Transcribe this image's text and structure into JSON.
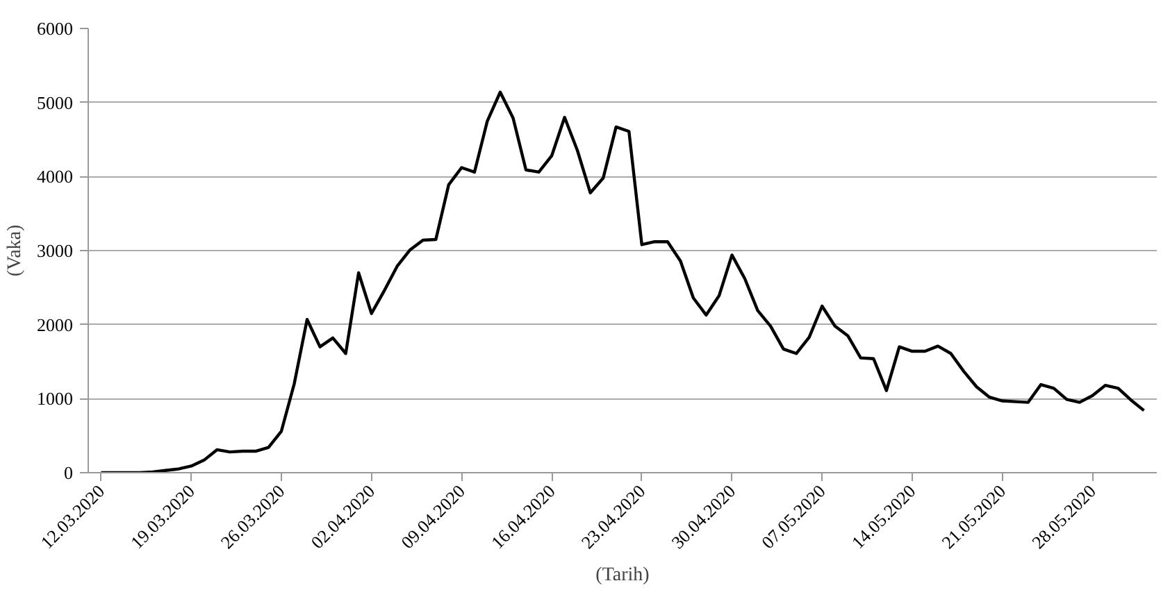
{
  "chart_data": {
    "type": "line",
    "xlabel": "(Tarih)",
    "ylabel": "(Vaka)",
    "x": [
      "2020-03-12",
      "2020-03-13",
      "2020-03-14",
      "2020-03-15",
      "2020-03-16",
      "2020-03-17",
      "2020-03-18",
      "2020-03-19",
      "2020-03-20",
      "2020-03-21",
      "2020-03-22",
      "2020-03-23",
      "2020-03-24",
      "2020-03-25",
      "2020-03-26",
      "2020-03-27",
      "2020-03-28",
      "2020-03-29",
      "2020-03-30",
      "2020-03-31",
      "2020-04-01",
      "2020-04-02",
      "2020-04-03",
      "2020-04-04",
      "2020-04-05",
      "2020-04-06",
      "2020-04-07",
      "2020-04-08",
      "2020-04-09",
      "2020-04-10",
      "2020-04-11",
      "2020-04-12",
      "2020-04-13",
      "2020-04-14",
      "2020-04-15",
      "2020-04-16",
      "2020-04-17",
      "2020-04-18",
      "2020-04-19",
      "2020-04-20",
      "2020-04-21",
      "2020-04-22",
      "2020-04-23",
      "2020-04-24",
      "2020-04-25",
      "2020-04-26",
      "2020-04-27",
      "2020-04-28",
      "2020-04-29",
      "2020-04-30",
      "2020-05-01",
      "2020-05-02",
      "2020-05-03",
      "2020-05-04",
      "2020-05-05",
      "2020-05-06",
      "2020-05-07",
      "2020-05-08",
      "2020-05-09",
      "2020-05-10",
      "2020-05-11",
      "2020-05-12",
      "2020-05-13",
      "2020-05-14",
      "2020-05-15",
      "2020-05-16",
      "2020-05-17",
      "2020-05-18",
      "2020-05-19",
      "2020-05-20",
      "2020-05-21",
      "2020-05-22",
      "2020-05-23",
      "2020-05-24",
      "2020-05-25",
      "2020-05-26",
      "2020-05-27",
      "2020-05-28",
      "2020-05-29",
      "2020-05-30",
      "2020-05-31",
      "2020-06-01"
    ],
    "series": [
      {
        "color": "#000000",
        "values": [
          0,
          0,
          0,
          0,
          10,
          30,
          50,
          90,
          170,
          310,
          280,
          290,
          290,
          340,
          560,
          1200,
          2070,
          1700,
          1820,
          1610,
          2700,
          2150,
          2460,
          2790,
          3010,
          3140,
          3150,
          3890,
          4120,
          4060,
          4750,
          5140,
          4790,
          4090,
          4060,
          4280,
          4800,
          4350,
          3780,
          3980,
          4670,
          4610,
          3080,
          3120,
          3120,
          2860,
          2360,
          2130,
          2390,
          2940,
          2620,
          2190,
          1980,
          1670,
          1610,
          1830,
          2250,
          1980,
          1850,
          1550,
          1540,
          1110,
          1700,
          1640,
          1640,
          1710,
          1610,
          1370,
          1160,
          1020,
          970,
          960,
          950,
          1190,
          1140,
          990,
          950,
          1040,
          1180,
          1140,
          980,
          840
        ]
      }
    ],
    "xlim": [
      "2020-03-11",
      "2020-06-02"
    ],
    "xticks": [
      {
        "value": "2020-03-12",
        "label": "12.03.2020"
      },
      {
        "value": "2020-03-19",
        "label": "19.03.2020"
      },
      {
        "value": "2020-03-26",
        "label": "26.03.2020"
      },
      {
        "value": "2020-04-02",
        "label": "02.04.2020"
      },
      {
        "value": "2020-04-09",
        "label": "09.04.2020"
      },
      {
        "value": "2020-04-16",
        "label": "16.04.2020"
      },
      {
        "value": "2020-04-23",
        "label": "23.04.2020"
      },
      {
        "value": "2020-04-30",
        "label": "30.04.2020"
      },
      {
        "value": "2020-05-07",
        "label": "07.05.2020"
      },
      {
        "value": "2020-05-14",
        "label": "14.05.2020"
      },
      {
        "value": "2020-05-21",
        "label": "21.05.2020"
      },
      {
        "value": "2020-05-28",
        "label": "28.05.2020"
      }
    ],
    "ylim": [
      0,
      6000
    ],
    "yticks": [
      0,
      1000,
      2000,
      3000,
      4000,
      5000,
      6000
    ],
    "grid": "y",
    "line_style": "solid"
  }
}
